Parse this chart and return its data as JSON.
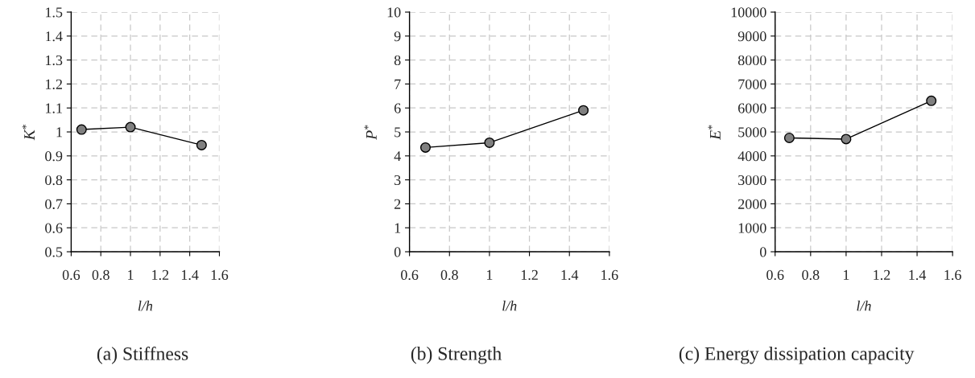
{
  "chart_data": [
    {
      "type": "line",
      "title": "(a) Stiffness",
      "xlabel": "l/h",
      "ylabel": "K$^{*}$",
      "x": [
        0.67,
        1.0,
        1.48
      ],
      "series": [
        {
          "color": "#808080",
          "values": [
            1.01,
            1.02,
            0.945
          ]
        }
      ],
      "xlim": [
        0.6,
        1.6
      ],
      "xticks": [
        0.6,
        0.8,
        1,
        1.2,
        1.4,
        1.6
      ],
      "ylim": [
        0.5,
        1.5
      ],
      "yticks": [
        0.5,
        0.6,
        0.7,
        0.8,
        0.9,
        1,
        1.1,
        1.2,
        1.3,
        1.4,
        1.5
      ],
      "grid": true,
      "marker": "circle",
      "line_style": "solid"
    },
    {
      "type": "line",
      "title": "(b) Strength",
      "xlabel": "l/h",
      "ylabel": "P$^{*}$",
      "x": [
        0.68,
        1.0,
        1.47
      ],
      "series": [
        {
          "color": "#808080",
          "values": [
            4.35,
            4.55,
            5.9
          ]
        }
      ],
      "xlim": [
        0.6,
        1.6
      ],
      "xticks": [
        0.6,
        0.8,
        1,
        1.2,
        1.4,
        1.6
      ],
      "ylim": [
        0,
        10
      ],
      "yticks": [
        0,
        1,
        2,
        3,
        4,
        5,
        6,
        7,
        8,
        9,
        10
      ],
      "grid": true,
      "marker": "circle",
      "line_style": "solid"
    },
    {
      "type": "line",
      "title": "(c) Energy dissipation capacity",
      "xlabel": "l/h",
      "ylabel": "E$^{*}$",
      "x": [
        0.68,
        1.0,
        1.48
      ],
      "series": [
        {
          "color": "#808080",
          "values": [
            4750,
            4700,
            6300
          ]
        }
      ],
      "xlim": [
        0.6,
        1.6
      ],
      "xticks": [
        0.6,
        0.8,
        1,
        1.2,
        1.4,
        1.6
      ],
      "ylim": [
        0,
        10000
      ],
      "yticks": [
        0,
        1000,
        2000,
        3000,
        4000,
        5000,
        6000,
        7000,
        8000,
        9000,
        10000
      ],
      "grid": true,
      "marker": "circle",
      "line_style": "solid"
    }
  ]
}
